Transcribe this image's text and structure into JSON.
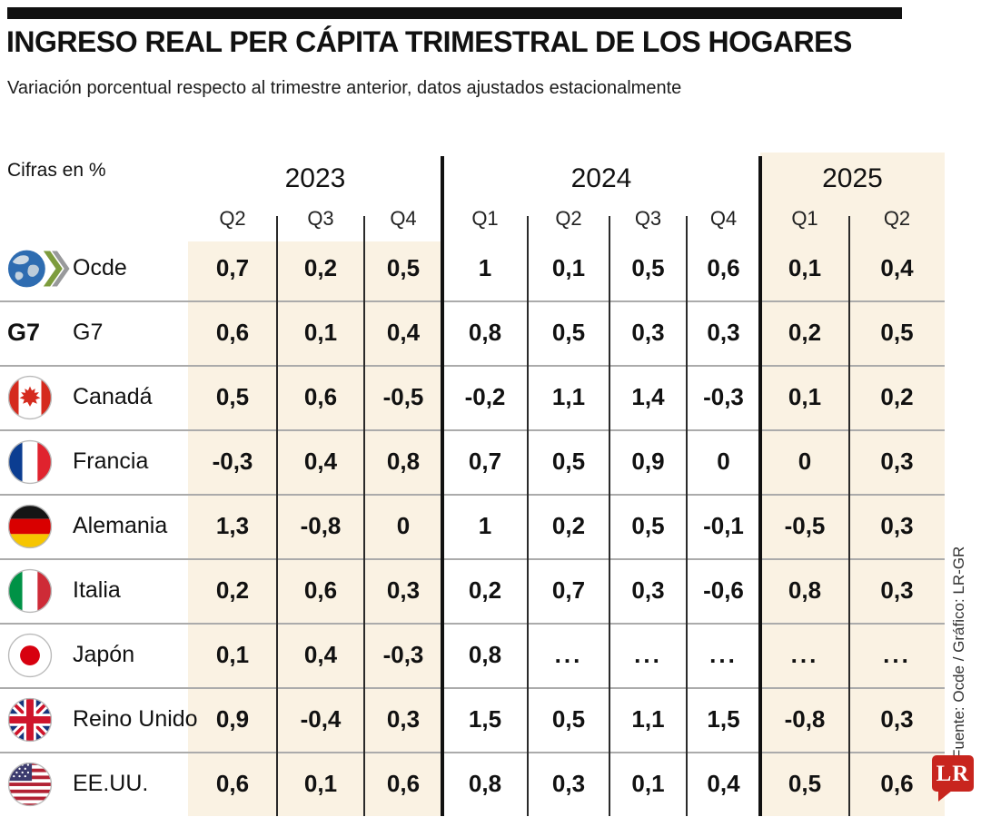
{
  "meta": {
    "brand_red": "#c8251e",
    "highlight_cream": "#faf2e3",
    "rule_black": "#111111"
  },
  "header": {
    "title": "INGRESO REAL PER CÁPITA TRIMESTRAL DE LOS HOGARES",
    "subtitle": "Variación porcentual respecto al trimestre anterior, datos ajustados estacionalmente"
  },
  "chart_data": {
    "type": "table",
    "title": "INGRESO REAL PER CÁPITA TRIMESTRAL DE LOS HOGARES",
    "subtitle": "Variación porcentual respecto al trimestre anterior, datos ajustados estacionalmente",
    "unit_label": "Cifras en %",
    "column_groups": [
      {
        "year": "2023",
        "quarters": [
          "Q2",
          "Q3",
          "Q4"
        ]
      },
      {
        "year": "2024",
        "quarters": [
          "Q1",
          "Q2",
          "Q3",
          "Q4"
        ]
      },
      {
        "year": "2025",
        "quarters": [
          "Q1",
          "Q2"
        ]
      }
    ],
    "rows": [
      {
        "icon": "oecd-globe",
        "label": "Ocde",
        "values": [
          "0,7",
          "0,2",
          "0,5",
          "1",
          "0,1",
          "0,5",
          "0,6",
          "0,1",
          "0,4"
        ]
      },
      {
        "icon": "g7-mark",
        "icon_text": "G7",
        "label": "G7",
        "values": [
          "0,6",
          "0,1",
          "0,4",
          "0,8",
          "0,5",
          "0,3",
          "0,3",
          "0,2",
          "0,5"
        ]
      },
      {
        "icon": "canada-flag",
        "label": "Canadá",
        "values": [
          "0,5",
          "0,6",
          "-0,5",
          "-0,2",
          "1,1",
          "1,4",
          "-0,3",
          "0,1",
          "0,2"
        ]
      },
      {
        "icon": "france-flag",
        "label": "Francia",
        "values": [
          "-0,3",
          "0,4",
          "0,8",
          "0,7",
          "0,5",
          "0,9",
          "0",
          "0",
          "0,3"
        ]
      },
      {
        "icon": "germany-flag",
        "label": "Alemania",
        "values": [
          "1,3",
          "-0,8",
          "0",
          "1",
          "0,2",
          "0,5",
          "-0,1",
          "-0,5",
          "0,3"
        ]
      },
      {
        "icon": "italy-flag",
        "label": "Italia",
        "values": [
          "0,2",
          "0,6",
          "0,3",
          "0,2",
          "0,7",
          "0,3",
          "-0,6",
          "0,8",
          "0,3"
        ]
      },
      {
        "icon": "japan-flag",
        "label": "Japón",
        "values": [
          "0,1",
          "0,4",
          "-0,3",
          "0,8",
          "...",
          "...",
          "...",
          "...",
          "..."
        ]
      },
      {
        "icon": "uk-flag",
        "label": "Reino Unido",
        "values": [
          "0,9",
          "-0,4",
          "0,3",
          "1,5",
          "0,5",
          "1,1",
          "1,5",
          "-0,8",
          "0,3"
        ]
      },
      {
        "icon": "usa-flag",
        "label": "EE.UU.",
        "values": [
          "0,6",
          "0,1",
          "0,6",
          "0,8",
          "0,3",
          "0,1",
          "0,4",
          "0,5",
          "0,6"
        ]
      }
    ]
  },
  "footer": {
    "source": "Fuente: Ocde / Gráfico: LR-GR",
    "logo_text": "LR"
  }
}
